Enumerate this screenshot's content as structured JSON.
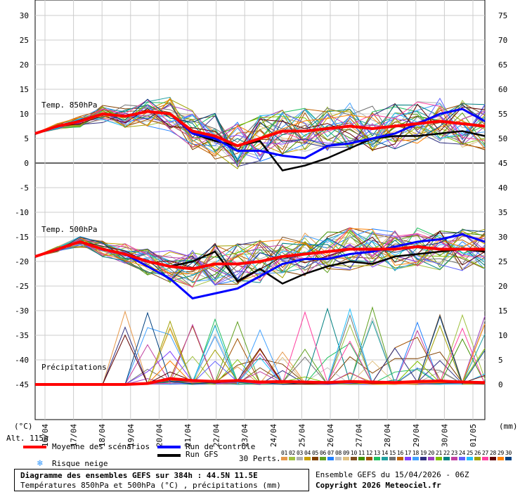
{
  "chart_data": {
    "type": "line",
    "x_unit_note": "",
    "dates": [
      "16/04",
      "17/04",
      "18/04",
      "19/04",
      "20/04",
      "21/04",
      "22/04",
      "23/04",
      "24/04",
      "25/04",
      "26/04",
      "27/04",
      "28/04",
      "29/04",
      "30/04",
      "01/05"
    ],
    "left_axis": {
      "unit_label": "(°C)",
      "ticks": [
        30,
        25,
        20,
        15,
        10,
        5,
        0,
        -5,
        -10,
        -15,
        -20,
        -25,
        -30,
        -35,
        -40,
        -45
      ]
    },
    "right_axis": {
      "unit_label": "(mm)",
      "ticks": [
        75,
        70,
        65,
        60,
        55,
        50,
        45,
        40,
        35,
        30,
        25,
        20,
        15,
        10,
        5,
        0
      ]
    },
    "panel_labels": {
      "t850": "Temp. 850hPa",
      "t500": "Temp. 500hPa",
      "precip": "Précipitations"
    },
    "t850_mean": [
      6,
      7.5,
      8.5,
      10,
      9.5,
      10.5,
      10,
      6.5,
      5.5,
      3.5,
      5,
      6.5,
      6.5,
      7,
      7.5,
      7,
      7.5,
      8,
      8.5,
      8,
      7.5
    ],
    "t850_control": [
      6,
      7.5,
      8.5,
      10,
      9.5,
      10.5,
      10,
      6,
      5,
      2.5,
      2.5,
      1.5,
      1,
      3.5,
      4,
      5,
      6,
      8,
      10,
      11,
      8.5
    ],
    "t850_gfs": [
      6,
      7.5,
      8.5,
      10,
      9.5,
      10.5,
      10,
      6,
      4.5,
      3.5,
      4.5,
      -1.5,
      -0.5,
      1,
      3,
      5,
      5.5,
      5.5,
      6,
      6.5,
      5.5
    ],
    "t500_mean": [
      -19,
      -17.5,
      -16,
      -17.5,
      -18.5,
      -20,
      -21,
      -21.5,
      -20.5,
      -20.5,
      -20,
      -19,
      -18.5,
      -18,
      -17.5,
      -17.5,
      -17.5,
      -17,
      -17.5,
      -17.5,
      -17.5
    ],
    "t500_control": [
      -19,
      -17.5,
      -16,
      -17.5,
      -18.5,
      -21,
      -23.5,
      -27.5,
      -26.5,
      -25.5,
      -23,
      -20.5,
      -19.5,
      -19.5,
      -18.5,
      -18,
      -17,
      -16,
      -15.5,
      -14.5,
      -16
    ],
    "t500_gfs": [
      -19,
      -17.5,
      -16,
      -17.5,
      -18.5,
      -20,
      -21,
      -20,
      -18,
      -24,
      -21.5,
      -24.5,
      -22.5,
      -21,
      -20,
      -20.5,
      -19,
      -18.5,
      -18,
      -17.5,
      -18
    ],
    "precip_mean_mm": [
      0,
      0,
      0,
      0,
      0,
      0.2,
      1.2,
      0.8,
      0.6,
      0.8,
      0.5,
      0.6,
      0.5,
      0.4,
      0.6,
      0.5,
      0.4,
      0.6,
      0.7,
      0.5,
      0.4
    ]
  },
  "legend": {
    "alt": "Alt. 115m",
    "mean": "Moyenne des scénarios",
    "control": "Run de contrôle",
    "gfs": "Run GFS",
    "snow": "Risque neige",
    "perts": "30 Perts.",
    "pert_codes": [
      "01",
      "02",
      "03",
      "04",
      "05",
      "06",
      "07",
      "08",
      "09",
      "10",
      "11",
      "12",
      "13",
      "14",
      "15",
      "16",
      "17",
      "18",
      "19",
      "20",
      "21",
      "22",
      "23",
      "24",
      "25",
      "26",
      "27",
      "28",
      "29",
      "30"
    ],
    "colors": {
      "mean": "#ff0000",
      "control": "#0000ff",
      "gfs": "#000000",
      "snow": "#3399ff"
    },
    "pert_colors": [
      "#e6994c",
      "#a0c040",
      "#b0b0b0",
      "#c8a000",
      "#804000",
      "#60a020",
      "#2080ff",
      "#c0c0c0",
      "#e0c080",
      "#805020",
      "#409000",
      "#a05000",
      "#20c060",
      "#20a0a0",
      "#707070",
      "#c06000",
      "#8040ff",
      "#40a0ff",
      "#303080",
      "#a040c0",
      "#80c000",
      "#008080",
      "#c040a0",
      "#6060ff",
      "#20c0ff",
      "#a0a000",
      "#ff40a0",
      "#600000",
      "#ff8000",
      "#004080"
    ]
  },
  "info": {
    "title_line": "Diagramme des ensembles GEFS sur 384h : 44.5N 11.5E",
    "subtitle_line": "Températures 850hPa et 500hPa (°C) , précipitations (mm)",
    "run_line": "Ensemble GEFS du 15/04/2026 - 06Z",
    "copyright": "Copyright 2026 Meteociel.fr"
  }
}
